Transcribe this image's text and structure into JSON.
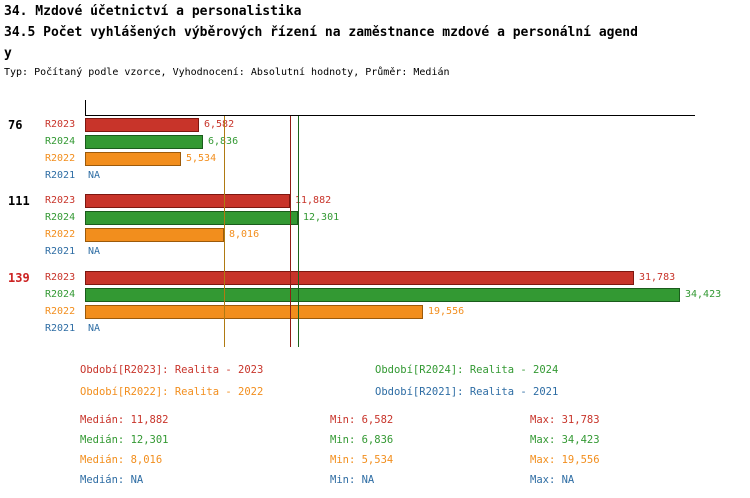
{
  "title": {
    "line1": "34. Mzdové účetnictví a personalistika",
    "line2": "34.5 Počet vyhlášených výběrových řízení na zaměstnance mzdové a personální agend",
    "line3": "y",
    "meta": "Typ: Počítaný podle vzorce, Vyhodnocení: Absolutní hodnoty, Průměr: Medián"
  },
  "chart_data": {
    "type": "bar",
    "orientation": "horizontal",
    "value_axis_max": 34423,
    "series_order": [
      "R2023",
      "R2024",
      "R2022",
      "R2021"
    ],
    "series_colors": {
      "R2023": "#c8342a",
      "R2024": "#339933",
      "R2022": "#f28e1d",
      "R2021": "#2e6da4"
    },
    "series_border_colors": {
      "R2023": "#7e1710",
      "R2024": "#1a5c1c",
      "R2022": "#9c5a0b",
      "R2021": "#1c4a73"
    },
    "groups": [
      {
        "label": "76",
        "label_color": "#000000",
        "bars": [
          {
            "series": "R2023",
            "value": 6582,
            "display": "6,582"
          },
          {
            "series": "R2024",
            "value": 6836,
            "display": "6,836"
          },
          {
            "series": "R2022",
            "value": 5534,
            "display": "5,534"
          },
          {
            "series": "R2021",
            "value": null,
            "display": "NA"
          }
        ]
      },
      {
        "label": "111",
        "label_color": "#000000",
        "bars": [
          {
            "series": "R2023",
            "value": 11882,
            "display": "11,882"
          },
          {
            "series": "R2024",
            "value": 12301,
            "display": "12,301"
          },
          {
            "series": "R2022",
            "value": 8016,
            "display": "8,016"
          },
          {
            "series": "R2021",
            "value": null,
            "display": "NA"
          }
        ]
      },
      {
        "label": "139",
        "label_color": "#cc2222",
        "bars": [
          {
            "series": "R2023",
            "value": 31783,
            "display": "31,783"
          },
          {
            "series": "R2024",
            "value": 34423,
            "display": "34,423"
          },
          {
            "series": "R2022",
            "value": 19556,
            "display": "19,556"
          },
          {
            "series": "R2021",
            "value": null,
            "display": "NA"
          }
        ]
      }
    ],
    "median_lines": [
      {
        "series": "R2023",
        "value": 11882,
        "color": "#8f1d14"
      },
      {
        "series": "R2024",
        "value": 12301,
        "color": "#1c641c"
      },
      {
        "series": "R2022",
        "value": 8016,
        "color": "#b07a12"
      }
    ]
  },
  "legend": {
    "items": [
      {
        "label": "Období[R2023]: Realita - 2023",
        "color": "#c8342a"
      },
      {
        "label": "Období[R2024]: Realita - 2024",
        "color": "#339933"
      },
      {
        "label": "Období[R2022]: Realita - 2022",
        "color": "#f28e1d"
      },
      {
        "label": "Období[R2021]: Realita - 2021",
        "color": "#2e6da4"
      }
    ]
  },
  "stats": {
    "rows": [
      {
        "color": "#c8342a",
        "median": "Medián: 11,882",
        "min": "Min: 6,582",
        "max": "Max: 31,783"
      },
      {
        "color": "#339933",
        "median": "Medián: 12,301",
        "min": "Min: 6,836",
        "max": "Max: 34,423"
      },
      {
        "color": "#f28e1d",
        "median": "Medián: 8,016",
        "min": "Min: 5,534",
        "max": "Max: 19,556"
      },
      {
        "color": "#2e6da4",
        "median": "Medián: NA",
        "min": "Min: NA",
        "max": "Max: NA"
      }
    ]
  }
}
